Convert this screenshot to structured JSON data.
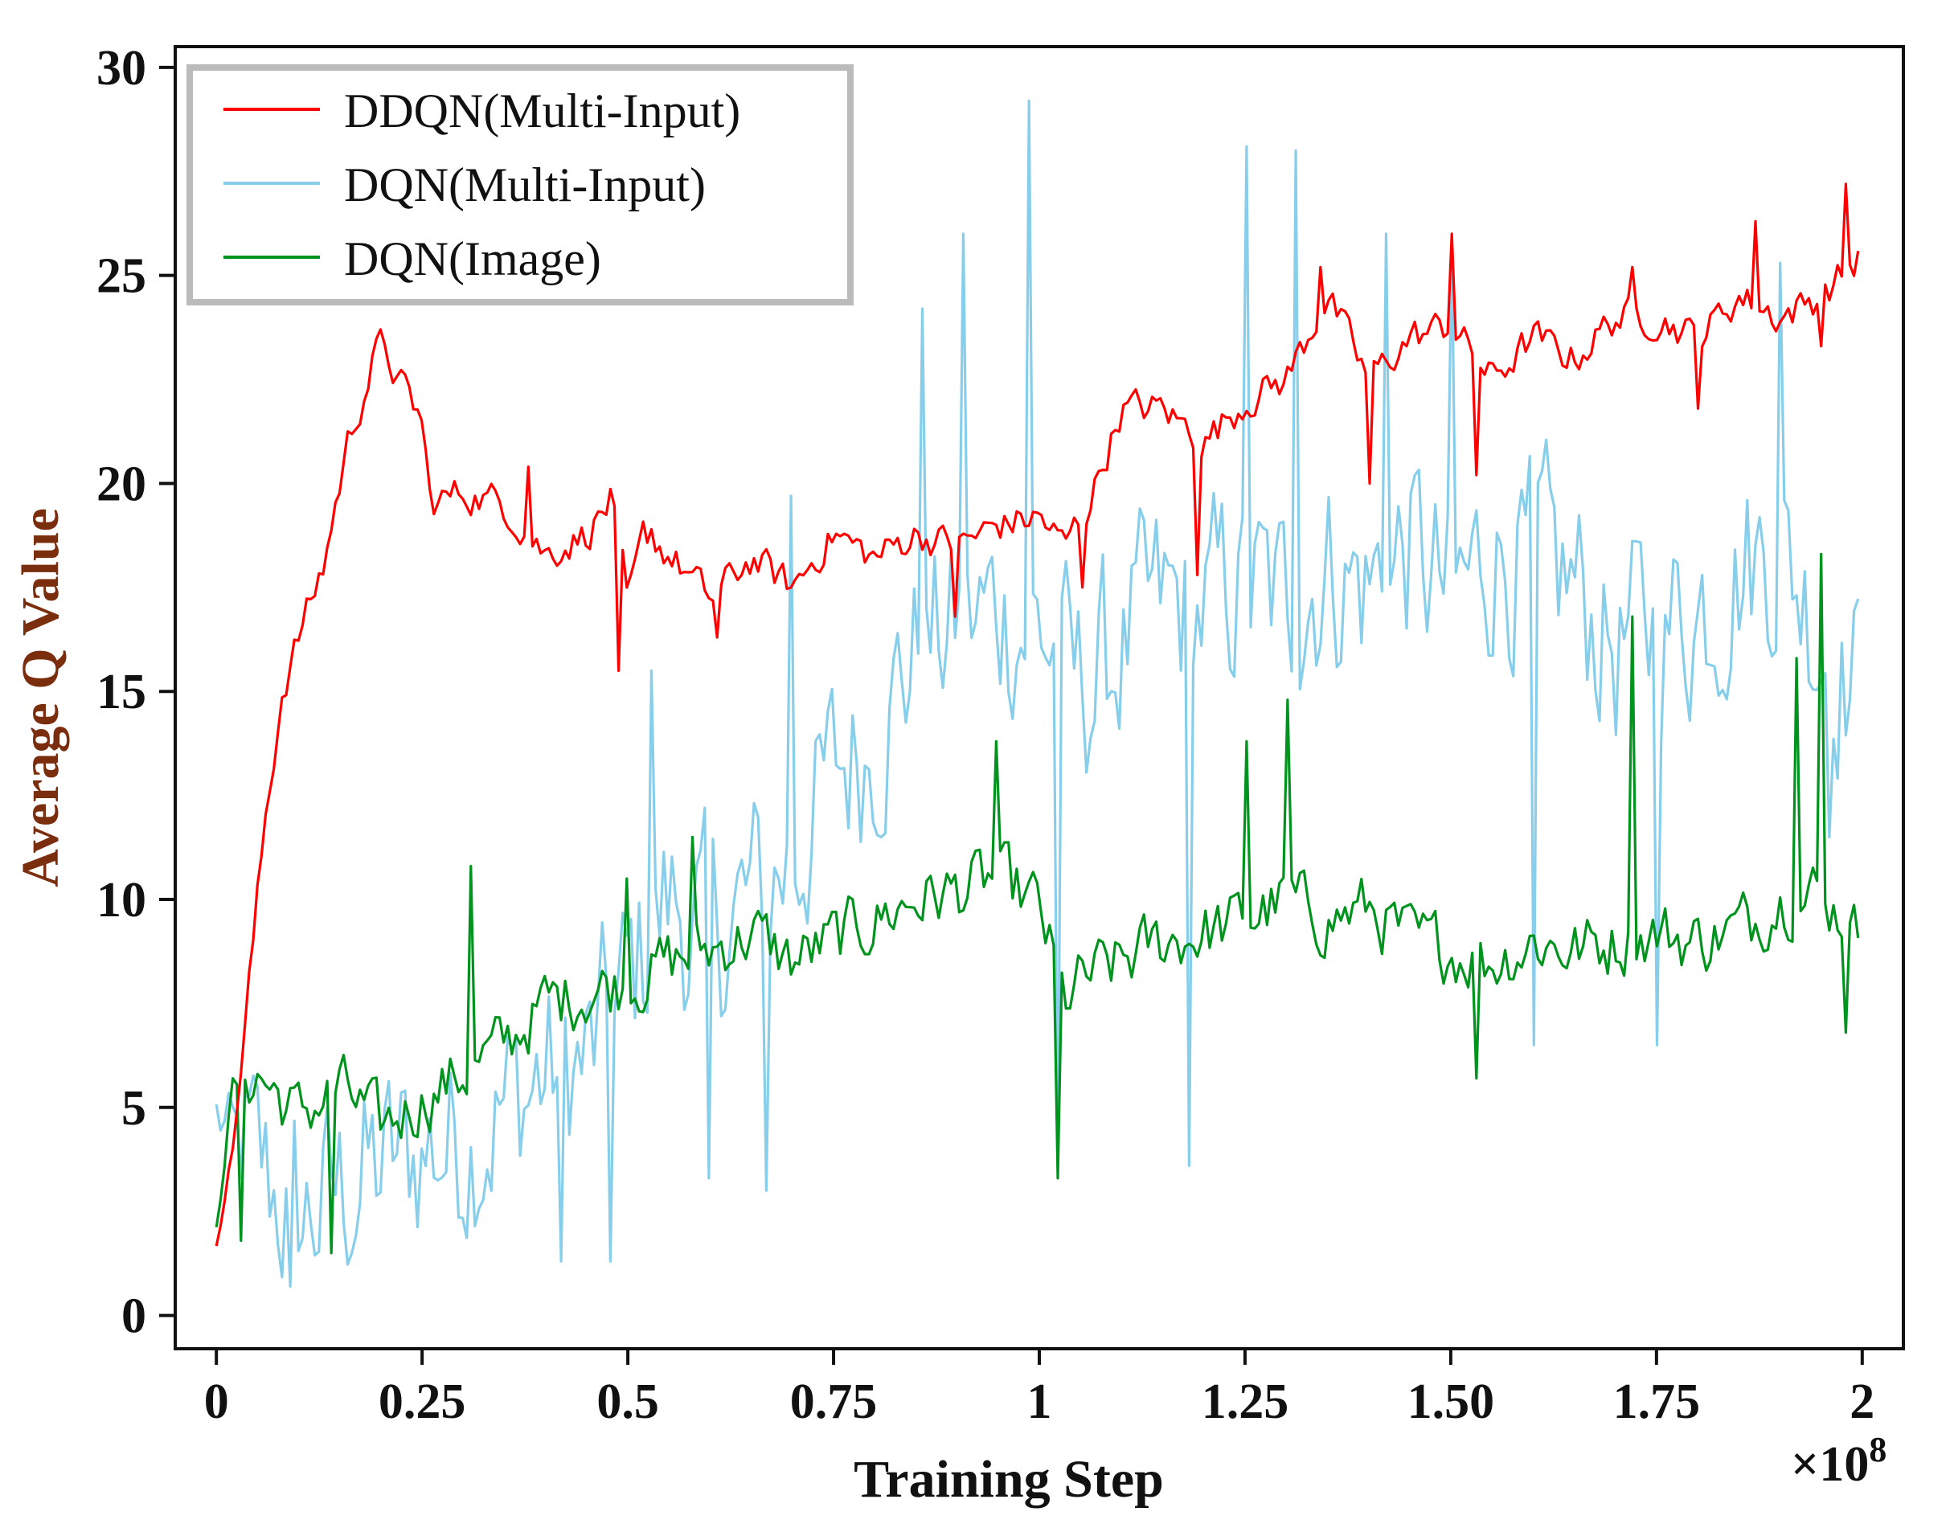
{
  "chart_data": {
    "type": "line",
    "title": "",
    "xlabel": "Training Step",
    "ylabel": "Average Q Value",
    "x_multiplier_label": "×10",
    "x_multiplier_exponent": "8",
    "xlim": [
      -0.05,
      2.05
    ],
    "ylim": [
      -0.8,
      30.5
    ],
    "x_ticks": [
      0,
      0.25,
      0.5,
      0.75,
      1,
      1.25,
      1.5,
      1.75,
      2
    ],
    "x_tick_labels": [
      "0",
      "0.25",
      "0.5",
      "0.75",
      "1",
      "1.25",
      "1.50",
      "1.75",
      "2"
    ],
    "y_ticks": [
      0,
      5,
      10,
      15,
      20,
      25,
      30
    ],
    "y_tick_labels": [
      "0",
      "5",
      "10",
      "15",
      "20",
      "25",
      "30"
    ],
    "legend_position": "top-left",
    "series": [
      {
        "name": "DDQN(Multi-Input)",
        "color": "#ff0000",
        "noise": 0.7,
        "points": [
          [
            0,
            1.8
          ],
          [
            0.02,
            4
          ],
          [
            0.04,
            8
          ],
          [
            0.06,
            12
          ],
          [
            0.08,
            15
          ],
          [
            0.1,
            16.3
          ],
          [
            0.13,
            18
          ],
          [
            0.16,
            21
          ],
          [
            0.2,
            23.5
          ],
          [
            0.22,
            22.5
          ],
          [
            0.25,
            21.5
          ],
          [
            0.26,
            19.5
          ],
          [
            0.3,
            19.8
          ],
          [
            0.35,
            19.5
          ],
          [
            0.4,
            18.3
          ],
          [
            0.45,
            18.8
          ],
          [
            0.48,
            19.6
          ],
          [
            0.5,
            17
          ],
          [
            0.52,
            18.8
          ],
          [
            0.55,
            18.3
          ],
          [
            0.6,
            17.2
          ],
          [
            0.65,
            18.2
          ],
          [
            0.7,
            17.5
          ],
          [
            0.75,
            18.8
          ],
          [
            0.8,
            18.2
          ],
          [
            0.85,
            18.8
          ],
          [
            0.9,
            18.5
          ],
          [
            0.95,
            19
          ],
          [
            1,
            19.2
          ],
          [
            1.03,
            18.5
          ],
          [
            1.06,
            19.5
          ],
          [
            1.1,
            21.8
          ],
          [
            1.15,
            21.8
          ],
          [
            1.2,
            21
          ],
          [
            1.25,
            22
          ],
          [
            1.3,
            22.5
          ],
          [
            1.35,
            24.5
          ],
          [
            1.4,
            22.5
          ],
          [
            1.45,
            23.5
          ],
          [
            1.5,
            23.8
          ],
          [
            1.55,
            22.5
          ],
          [
            1.6,
            23.5
          ],
          [
            1.65,
            23
          ],
          [
            1.7,
            24
          ],
          [
            1.75,
            24
          ],
          [
            1.8,
            23.5
          ],
          [
            1.85,
            24.5
          ],
          [
            1.9,
            24
          ],
          [
            1.95,
            24.5
          ],
          [
            2,
            25.5
          ]
        ],
        "spikes": [
          [
            0.2,
            23.7
          ],
          [
            0.38,
            20.4
          ],
          [
            0.49,
            15.5
          ],
          [
            0.53,
            18.9
          ],
          [
            0.61,
            16.3
          ],
          [
            0.9,
            16.8
          ],
          [
            1.05,
            17.5
          ],
          [
            1.19,
            17.8
          ],
          [
            1.34,
            25.2
          ],
          [
            1.4,
            20
          ],
          [
            1.5,
            26
          ],
          [
            1.53,
            20.2
          ],
          [
            1.72,
            25.2
          ],
          [
            1.8,
            21.8
          ],
          [
            1.87,
            26.3
          ],
          [
            1.95,
            23.3
          ],
          [
            1.98,
            27.2
          ]
        ]
      },
      {
        "name": "DQN(Multi-Input)",
        "color": "#87ceeb",
        "noise": 4,
        "points": [
          [
            0,
            4.8
          ],
          [
            0.05,
            3.5
          ],
          [
            0.1,
            2.2
          ],
          [
            0.15,
            3
          ],
          [
            0.2,
            3.5
          ],
          [
            0.25,
            4
          ],
          [
            0.3,
            4.3
          ],
          [
            0.35,
            5
          ],
          [
            0.4,
            5.8
          ],
          [
            0.45,
            6
          ],
          [
            0.5,
            8
          ],
          [
            0.55,
            10
          ],
          [
            0.6,
            9
          ],
          [
            0.65,
            10
          ],
          [
            0.7,
            11
          ],
          [
            0.75,
            13
          ],
          [
            0.8,
            14
          ],
          [
            0.85,
            16
          ],
          [
            0.9,
            16.5
          ],
          [
            0.95,
            17
          ],
          [
            1,
            16.5
          ],
          [
            1.05,
            15
          ],
          [
            1.1,
            16
          ],
          [
            1.15,
            17
          ],
          [
            1.2,
            17
          ],
          [
            1.25,
            17.5
          ],
          [
            1.3,
            17
          ],
          [
            1.35,
            18
          ],
          [
            1.4,
            17.5
          ],
          [
            1.45,
            18.5
          ],
          [
            1.5,
            17
          ],
          [
            1.55,
            18.5
          ],
          [
            1.6,
            18
          ],
          [
            1.65,
            17.5
          ],
          [
            1.7,
            16
          ],
          [
            1.75,
            16.5
          ],
          [
            1.8,
            17
          ],
          [
            1.85,
            18
          ],
          [
            1.9,
            18.5
          ],
          [
            1.95,
            16.5
          ],
          [
            2,
            15
          ]
        ],
        "spikes": [
          [
            0.09,
            0.7
          ],
          [
            0.42,
            1.3
          ],
          [
            0.48,
            1.3
          ],
          [
            0.53,
            15.5
          ],
          [
            0.6,
            3.3
          ],
          [
            0.67,
            3
          ],
          [
            0.7,
            19.7
          ],
          [
            0.86,
            24.2
          ],
          [
            0.91,
            26
          ],
          [
            0.99,
            29.2
          ],
          [
            1.02,
            3.5
          ],
          [
            1.18,
            3.6
          ],
          [
            1.25,
            28.1
          ],
          [
            1.31,
            28
          ],
          [
            1.42,
            26
          ],
          [
            1.5,
            25.8
          ],
          [
            1.6,
            6.5
          ],
          [
            1.75,
            6.5
          ],
          [
            1.9,
            25.3
          ],
          [
            1.96,
            11.5
          ]
        ]
      },
      {
        "name": "DQN(Image)",
        "color": "#00931d",
        "noise": 1.3,
        "points": [
          [
            0,
            2.3
          ],
          [
            0.02,
            5.5
          ],
          [
            0.05,
            5.8
          ],
          [
            0.1,
            4.8
          ],
          [
            0.15,
            5.5
          ],
          [
            0.2,
            4.5
          ],
          [
            0.25,
            5.2
          ],
          [
            0.3,
            5.8
          ],
          [
            0.35,
            6.5
          ],
          [
            0.4,
            7.5
          ],
          [
            0.45,
            7.8
          ],
          [
            0.5,
            8
          ],
          [
            0.55,
            8.5
          ],
          [
            0.6,
            8.8
          ],
          [
            0.65,
            9.2
          ],
          [
            0.7,
            8.5
          ],
          [
            0.75,
            9
          ],
          [
            0.8,
            9.5
          ],
          [
            0.85,
            10
          ],
          [
            0.9,
            10.2
          ],
          [
            0.95,
            10.5
          ],
          [
            1,
            9.8
          ],
          [
            1.03,
            7.5
          ],
          [
            1.05,
            8
          ],
          [
            1.1,
            8.5
          ],
          [
            1.15,
            9
          ],
          [
            1.2,
            9.2
          ],
          [
            1.25,
            9.5
          ],
          [
            1.3,
            10
          ],
          [
            1.35,
            9.5
          ],
          [
            1.4,
            9.8
          ],
          [
            1.45,
            9
          ],
          [
            1.5,
            8.8
          ],
          [
            1.55,
            8.5
          ],
          [
            1.6,
            9
          ],
          [
            1.65,
            8.8
          ],
          [
            1.7,
            9
          ],
          [
            1.75,
            9.2
          ],
          [
            1.8,
            9
          ],
          [
            1.85,
            9.3
          ],
          [
            1.9,
            10
          ],
          [
            1.95,
            10.2
          ],
          [
            2,
            9
          ]
        ],
        "spikes": [
          [
            0.03,
            1.8
          ],
          [
            0.14,
            1.5
          ],
          [
            0.31,
            10.8
          ],
          [
            0.5,
            10.5
          ],
          [
            0.58,
            11.5
          ],
          [
            0.95,
            13.8
          ],
          [
            1.02,
            3.3
          ],
          [
            1.25,
            13.8
          ],
          [
            1.3,
            14.8
          ],
          [
            1.53,
            5.7
          ],
          [
            1.72,
            16.8
          ],
          [
            1.92,
            15.8
          ],
          [
            1.95,
            18.3
          ],
          [
            1.98,
            6.8
          ]
        ]
      }
    ]
  }
}
